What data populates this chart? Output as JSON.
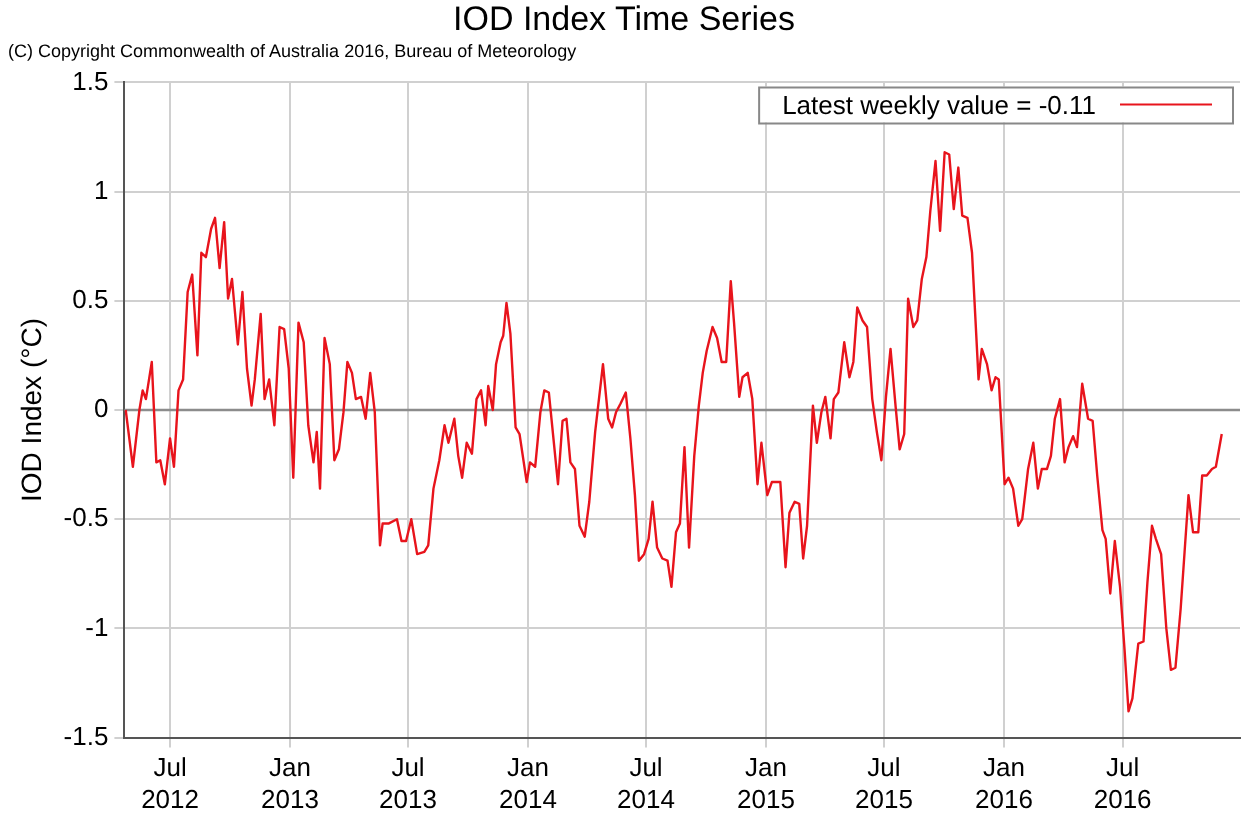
{
  "chart_data": {
    "type": "line",
    "title": "IOD Index Time Series",
    "subtitle": "(C) Copyright Commonwealth of Australia 2016, Bureau of Meteorology",
    "ylabel": "IOD Index (°C)",
    "xlim": [
      "2012-04-22",
      "2016-12-28"
    ],
    "xticks": [
      {
        "value": "2012-07-01",
        "label": "Jul 2012"
      },
      {
        "value": "2013-01-01",
        "label": "Jan 2013"
      },
      {
        "value": "2013-07-01",
        "label": "Jul 2013"
      },
      {
        "value": "2014-01-01",
        "label": "Jan 2014"
      },
      {
        "value": "2014-07-01",
        "label": "Jul 2014"
      },
      {
        "value": "2015-01-01",
        "label": "Jan 2015"
      },
      {
        "value": "2015-07-01",
        "label": "Jul 2015"
      },
      {
        "value": "2016-01-01",
        "label": "Jan 2016"
      },
      {
        "value": "2016-07-01",
        "label": "Jul 2016"
      }
    ],
    "ylim": [
      -1.5,
      1.5
    ],
    "yticks": [
      -1.5,
      -1,
      -0.5,
      0,
      0.5,
      1,
      1.5
    ],
    "grid": true,
    "legend": "top right",
    "marker": "none",
    "line_style": "solid",
    "ref_lines": [
      {
        "axis": "y",
        "value": 0,
        "color": "#8c8c8c"
      }
    ],
    "x": [
      "2012-04-24",
      "2012-05-05",
      "2012-05-15",
      "2012-05-20",
      "2012-05-25",
      "2012-06-03",
      "2012-06-10",
      "2012-06-16",
      "2012-06-23",
      "2012-07-01",
      "2012-07-07",
      "2012-07-14",
      "2012-07-21",
      "2012-07-28",
      "2012-08-04",
      "2012-08-12",
      "2012-08-18",
      "2012-08-25",
      "2012-09-02",
      "2012-09-08",
      "2012-09-15",
      "2012-09-22",
      "2012-09-28",
      "2012-10-04",
      "2012-10-13",
      "2012-10-20",
      "2012-10-27",
      "2012-11-03",
      "2012-11-08",
      "2012-11-17",
      "2012-11-23",
      "2012-11-30",
      "2012-12-08",
      "2012-12-16",
      "2012-12-23",
      "2012-12-30",
      "2013-01-06",
      "2013-01-14",
      "2013-01-22",
      "2013-01-29",
      "2013-02-06",
      "2013-02-11",
      "2013-02-16",
      "2013-02-23",
      "2013-03-03",
      "2013-03-10",
      "2013-03-17",
      "2013-03-24",
      "2013-03-30",
      "2013-04-06",
      "2013-04-12",
      "2013-04-20",
      "2013-04-27",
      "2013-05-04",
      "2013-05-11",
      "2013-05-19",
      "2013-05-23",
      "2013-06-01",
      "2013-06-14",
      "2013-06-21",
      "2013-06-28",
      "2013-07-06",
      "2013-07-15",
      "2013-07-26",
      "2013-08-01",
      "2013-08-09",
      "2013-08-18",
      "2013-08-26",
      "2013-09-01",
      "2013-09-10",
      "2013-09-16",
      "2013-09-22",
      "2013-09-29",
      "2013-10-07",
      "2013-10-14",
      "2013-10-21",
      "2013-10-28",
      "2013-11-01",
      "2013-11-08",
      "2013-11-13",
      "2013-11-20",
      "2013-11-24",
      "2013-11-29",
      "2013-12-05",
      "2013-12-13",
      "2013-12-19",
      "2013-12-30",
      "2014-01-04",
      "2014-01-12",
      "2014-01-20",
      "2014-01-26",
      "2014-02-02",
      "2014-02-09",
      "2014-02-16",
      "2014-02-23",
      "2014-03-01",
      "2014-03-07",
      "2014-03-14",
      "2014-03-21",
      "2014-03-29",
      "2014-04-05",
      "2014-04-14",
      "2014-04-26",
      "2014-05-04",
      "2014-05-10",
      "2014-05-16",
      "2014-05-23",
      "2014-05-31",
      "2014-06-07",
      "2014-06-14",
      "2014-06-20",
      "2014-06-28",
      "2014-07-05",
      "2014-07-11",
      "2014-07-18",
      "2014-07-26",
      "2014-08-03",
      "2014-08-09",
      "2014-08-16",
      "2014-08-22",
      "2014-08-29",
      "2014-09-05",
      "2014-09-13",
      "2014-09-20",
      "2014-09-26",
      "2014-10-02",
      "2014-10-11",
      "2014-10-18",
      "2014-10-25",
      "2014-11-01",
      "2014-11-08",
      "2014-11-13",
      "2014-11-21",
      "2014-11-26",
      "2014-12-04",
      "2014-12-11",
      "2014-12-19",
      "2014-12-25",
      "2015-01-03",
      "2015-01-10",
      "2015-01-23",
      "2015-01-31",
      "2015-02-06",
      "2015-02-14",
      "2015-02-21",
      "2015-02-27",
      "2015-03-05",
      "2015-03-14",
      "2015-03-20",
      "2015-03-27",
      "2015-04-02",
      "2015-04-10",
      "2015-04-15",
      "2015-04-22",
      "2015-05-01",
      "2015-05-09",
      "2015-05-15",
      "2015-05-21",
      "2015-05-29",
      "2015-06-05",
      "2015-06-13",
      "2015-06-20",
      "2015-06-27",
      "2015-07-04",
      "2015-07-11",
      "2015-07-19",
      "2015-07-25",
      "2015-08-01",
      "2015-08-07",
      "2015-08-15",
      "2015-08-21",
      "2015-08-28",
      "2015-09-04",
      "2015-09-10",
      "2015-09-18",
      "2015-09-25",
      "2015-10-02",
      "2015-10-09",
      "2015-10-16",
      "2015-10-23",
      "2015-10-29",
      "2015-11-06",
      "2015-11-13",
      "2015-11-18",
      "2015-11-23",
      "2015-11-28",
      "2015-12-06",
      "2015-12-13",
      "2015-12-19",
      "2015-12-24",
      "2016-01-02",
      "2016-01-08",
      "2016-01-15",
      "2016-01-23",
      "2016-01-29",
      "2016-02-07",
      "2016-02-15",
      "2016-02-22",
      "2016-02-28",
      "2016-03-07",
      "2016-03-13",
      "2016-03-19",
      "2016-03-27",
      "2016-04-03",
      "2016-04-09",
      "2016-04-16",
      "2016-04-22",
      "2016-04-30",
      "2016-05-09",
      "2016-05-16",
      "2016-05-23",
      "2016-05-31",
      "2016-06-05",
      "2016-06-12",
      "2016-06-19",
      "2016-06-27",
      "2016-07-04",
      "2016-07-10",
      "2016-07-16",
      "2016-07-25",
      "2016-08-02",
      "2016-08-08",
      "2016-08-15",
      "2016-08-21",
      "2016-08-29",
      "2016-09-06",
      "2016-09-13",
      "2016-09-20",
      "2016-09-28",
      "2016-10-04",
      "2016-10-10",
      "2016-10-17",
      "2016-10-25",
      "2016-10-31",
      "2016-11-07",
      "2016-11-15",
      "2016-11-21",
      "2016-11-30"
    ],
    "series": [
      {
        "name": "Latest weekly value = -0.11",
        "color": "#e8141c",
        "values": [
          0.0,
          -0.26,
          0.0,
          0.09,
          0.05,
          0.22,
          -0.24,
          -0.23,
          -0.34,
          -0.13,
          -0.26,
          0.09,
          0.14,
          0.54,
          0.62,
          0.25,
          0.72,
          0.7,
          0.83,
          0.88,
          0.65,
          0.86,
          0.51,
          0.6,
          0.3,
          0.54,
          0.19,
          0.02,
          0.14,
          0.44,
          0.05,
          0.14,
          -0.07,
          0.38,
          0.37,
          0.19,
          -0.31,
          0.4,
          0.31,
          -0.07,
          -0.24,
          -0.1,
          -0.36,
          0.33,
          0.21,
          -0.23,
          -0.18,
          -0.01,
          0.22,
          0.17,
          0.05,
          0.06,
          -0.04,
          0.17,
          -0.01,
          -0.62,
          -0.52,
          -0.52,
          -0.5,
          -0.6,
          -0.6,
          -0.5,
          -0.66,
          -0.65,
          -0.62,
          -0.36,
          -0.23,
          -0.07,
          -0.15,
          -0.04,
          -0.21,
          -0.31,
          -0.15,
          -0.2,
          0.05,
          0.09,
          -0.07,
          0.11,
          0.0,
          0.21,
          0.31,
          0.34,
          0.49,
          0.35,
          -0.08,
          -0.11,
          -0.33,
          -0.24,
          -0.26,
          -0.01,
          0.09,
          0.08,
          -0.13,
          -0.34,
          -0.05,
          -0.04,
          -0.24,
          -0.27,
          -0.53,
          -0.58,
          -0.42,
          -0.1,
          0.21,
          -0.04,
          -0.08,
          -0.01,
          0.03,
          0.08,
          -0.13,
          -0.39,
          -0.69,
          -0.66,
          -0.59,
          -0.42,
          -0.63,
          -0.68,
          -0.69,
          -0.81,
          -0.56,
          -0.52,
          -0.17,
          -0.63,
          -0.21,
          0.02,
          0.17,
          0.27,
          0.38,
          0.33,
          0.22,
          0.22,
          0.59,
          0.4,
          0.06,
          0.15,
          0.17,
          0.05,
          -0.34,
          -0.15,
          -0.39,
          -0.33,
          -0.33,
          -0.72,
          -0.47,
          -0.42,
          -0.43,
          -0.68,
          -0.53,
          0.02,
          -0.15,
          -0.01,
          0.06,
          -0.13,
          0.05,
          0.08,
          0.31,
          0.15,
          0.22,
          0.47,
          0.41,
          0.38,
          0.05,
          -0.1,
          -0.23,
          0.06,
          0.28,
          0.01,
          -0.18,
          -0.11,
          0.51,
          0.38,
          0.41,
          0.6,
          0.7,
          0.91,
          1.14,
          0.82,
          1.18,
          1.17,
          0.92,
          1.11,
          0.89,
          0.88,
          0.72,
          0.43,
          0.14,
          0.28,
          0.21,
          0.09,
          0.15,
          0.14,
          -0.34,
          -0.31,
          -0.36,
          -0.53,
          -0.5,
          -0.27,
          -0.15,
          -0.36,
          -0.27,
          -0.27,
          -0.21,
          -0.04,
          0.05,
          -0.24,
          -0.17,
          -0.12,
          -0.17,
          0.12,
          -0.04,
          -0.05,
          -0.3,
          -0.55,
          -0.59,
          -0.84,
          -0.6,
          -0.81,
          -1.1,
          -1.38,
          -1.32,
          -1.07,
          -1.06,
          -0.79,
          -0.53,
          -0.59,
          -0.66,
          -1.0,
          -1.19,
          -1.18,
          -0.91,
          -0.65,
          -0.39,
          -0.56,
          -0.56,
          -0.3,
          -0.3,
          -0.27,
          -0.26,
          -0.11
        ]
      }
    ]
  }
}
